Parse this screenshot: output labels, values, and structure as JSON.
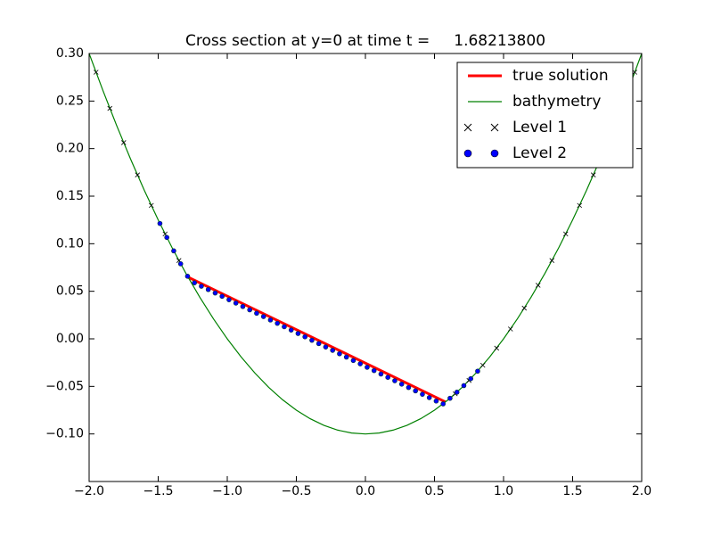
{
  "chart_data": {
    "type": "line",
    "title": "Cross section at y=0 at time t =     1.68213800",
    "xlim": [
      -2,
      2
    ],
    "ylim": [
      -0.15,
      0.3
    ],
    "xticks": [
      {
        "value": -2,
        "label": "−2.0"
      },
      {
        "value": -1.5,
        "label": "−1.5"
      },
      {
        "value": -1,
        "label": "−1.0"
      },
      {
        "value": -0.5,
        "label": "−0.5"
      },
      {
        "value": 0,
        "label": "0.0"
      },
      {
        "value": 0.5,
        "label": "0.5"
      },
      {
        "value": 1,
        "label": "1.0"
      },
      {
        "value": 1.5,
        "label": "1.5"
      },
      {
        "value": 2,
        "label": "2.0"
      }
    ],
    "yticks": [
      {
        "value": -0.1,
        "label": "−0.10"
      },
      {
        "value": -0.05,
        "label": "−0.05"
      },
      {
        "value": 0,
        "label": "0.00"
      },
      {
        "value": 0.05,
        "label": "0.05"
      },
      {
        "value": 0.1,
        "label": "0.10"
      },
      {
        "value": 0.15,
        "label": "0.15"
      },
      {
        "value": 0.2,
        "label": "0.20"
      },
      {
        "value": 0.25,
        "label": "0.25"
      },
      {
        "value": 0.3,
        "label": "0.30"
      }
    ],
    "legend": "upper right",
    "series": [
      {
        "name": "true solution",
        "color": "#ff0000",
        "style": "line",
        "x": [
          -1.28,
          0.58
        ],
        "values": [
          0.0646,
          -0.0664
        ]
      },
      {
        "name": "bathymetry",
        "color": "#008000",
        "style": "line",
        "x": [
          -2,
          -1.9,
          -1.8,
          -1.7,
          -1.6,
          -1.5,
          -1.4,
          -1.3,
          -1.2,
          -1.1,
          -1,
          -0.9,
          -0.8,
          -0.7,
          -0.6,
          -0.5,
          -0.4,
          -0.3,
          -0.2,
          -0.1,
          0,
          0.1,
          0.2,
          0.3,
          0.4,
          0.5,
          0.6,
          0.7,
          0.8,
          0.9,
          1,
          1.1,
          1.2,
          1.3,
          1.4,
          1.5,
          1.6,
          1.7,
          1.8,
          1.9,
          2
        ],
        "values": [
          0.3,
          0.261,
          0.224,
          0.189,
          0.156,
          0.125,
          0.096,
          0.069,
          0.044,
          0.021,
          0,
          -0.019,
          -0.036,
          -0.051,
          -0.064,
          -0.075,
          -0.084,
          -0.091,
          -0.096,
          -0.099,
          -0.1,
          -0.099,
          -0.096,
          -0.091,
          -0.084,
          -0.075,
          -0.064,
          -0.051,
          -0.036,
          -0.019,
          0,
          0.021,
          0.044,
          0.069,
          0.096,
          0.125,
          0.156,
          0.189,
          0.224,
          0.261,
          0.3
        ]
      },
      {
        "name": "Level 1",
        "color": "#000000",
        "style": "cross",
        "x": [
          -1.95,
          -1.85,
          -1.75,
          -1.65,
          -1.55,
          -1.45,
          -1.35,
          0.65,
          0.75,
          0.85,
          0.95,
          1.05,
          1.15,
          1.25,
          1.35,
          1.45,
          1.55,
          1.65,
          1.75,
          1.85,
          1.95
        ],
        "values": [
          0.2803,
          0.2423,
          0.2063,
          0.1723,
          0.1403,
          0.1103,
          0.0823,
          -0.0578,
          -0.0438,
          -0.0278,
          -0.0098,
          0.0103,
          0.0323,
          0.0563,
          0.0823,
          0.1103,
          0.1403,
          0.1723,
          0.2063,
          0.2423,
          0.2803
        ]
      },
      {
        "name": "Level 2",
        "color": "#0000ff",
        "style": "dot",
        "x": [
          -1.4875,
          -1.4375,
          -1.3875,
          -1.3375,
          -1.2875,
          -1.2375,
          -1.1875,
          -1.1375,
          -1.0875,
          -1.0375,
          -0.9875,
          -0.9375,
          -0.8875,
          -0.8375,
          -0.7875,
          -0.7375,
          -0.6875,
          -0.6375,
          -0.5875,
          -0.5375,
          -0.4875,
          -0.4375,
          -0.3875,
          -0.3375,
          -0.2875,
          -0.2375,
          -0.1875,
          -0.1375,
          -0.0875,
          -0.0375,
          0.0125,
          0.0625,
          0.1125,
          0.1625,
          0.2125,
          0.2625,
          0.3125,
          0.3625,
          0.4125,
          0.4625,
          0.5125,
          0.5625,
          0.6125,
          0.6625,
          0.7125,
          0.7625,
          0.8125
        ],
        "values": [
          0.1213,
          0.1066,
          0.0925,
          0.0789,
          0.0658,
          0.0589,
          0.0553,
          0.0518,
          0.0482,
          0.0447,
          0.0411,
          0.0376,
          0.034,
          0.0305,
          0.0269,
          0.0234,
          0.0198,
          0.0163,
          0.0127,
          0.0092,
          0.0056,
          0.0021,
          -0.0015,
          -0.005,
          -0.0086,
          -0.0121,
          -0.0157,
          -0.0192,
          -0.0228,
          -0.0263,
          -0.0299,
          -0.0334,
          -0.037,
          -0.0405,
          -0.0441,
          -0.0476,
          -0.0512,
          -0.0547,
          -0.0583,
          -0.0618,
          -0.0654,
          -0.0684,
          -0.0625,
          -0.0561,
          -0.0492,
          -0.0419,
          -0.034
        ]
      }
    ]
  }
}
